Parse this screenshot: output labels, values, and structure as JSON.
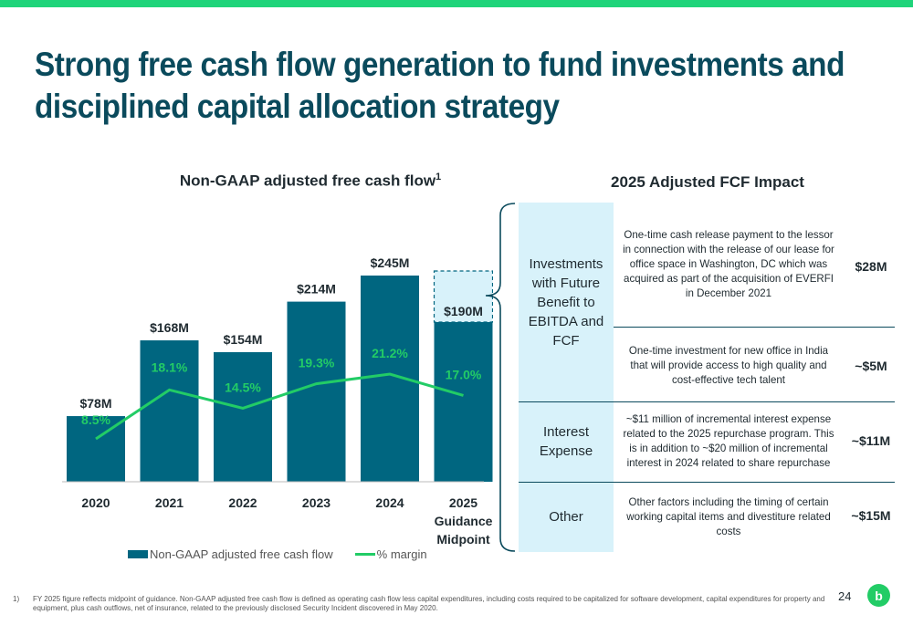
{
  "slide": {
    "title_line1": "Strong free cash flow generation to fund investments and",
    "title_line2": "disciplined capital allocation strategy",
    "page_number": "24",
    "logo_letter": "b"
  },
  "colors": {
    "accent_green": "#1fd47a",
    "title_teal": "#0a4a5c",
    "bar_teal": "#006680",
    "margin_line": "#22cc66",
    "panel_light_blue": "#d8f2fa"
  },
  "chart_data": {
    "type": "bar",
    "title": "Non-GAAP adjusted free cash flow",
    "title_superscript": "1",
    "categories": [
      "2020",
      "2021",
      "2022",
      "2023",
      "2024",
      "2025 Guidance Midpoint"
    ],
    "category_lines": [
      [
        "2020"
      ],
      [
        "2021"
      ],
      [
        "2022"
      ],
      [
        "2023"
      ],
      [
        "2024"
      ],
      [
        "2025",
        "Guidance",
        "Midpoint"
      ]
    ],
    "series": [
      {
        "name": "Non-GAAP adjusted free cash flow",
        "type": "bar",
        "values": [
          78,
          168,
          154,
          214,
          245,
          190
        ],
        "labels": [
          "$78M",
          "$168M",
          "$154M",
          "$214M",
          "$245M",
          "$190M"
        ],
        "guidance_index": 5
      },
      {
        "name": "% margin",
        "type": "line",
        "values": [
          8.5,
          18.1,
          14.5,
          19.3,
          21.2,
          17.0
        ],
        "labels": [
          "8.5%",
          "18.1%",
          "14.5%",
          "19.3%",
          "21.2%",
          "17.0%"
        ]
      }
    ],
    "legend_position": "bottom",
    "grid": false
  },
  "impact": {
    "title": "2025 Adjusted FCF Impact",
    "categories": [
      {
        "lines": [
          "Investments",
          "with Future",
          "Benefit to",
          "EBITDA and",
          "FCF"
        ]
      },
      {
        "lines": [
          "Interest",
          "Expense"
        ]
      },
      {
        "lines": [
          "Other"
        ]
      }
    ],
    "rows": [
      {
        "description": "One-time cash release payment to the lessor in connection with the release of our lease for office space in Washington, DC which was acquired as part of the acquisition of EVERFI in December 2021",
        "amount": "$28M"
      },
      {
        "description": "One-time investment for new office in India that will provide access to high quality and cost-effective tech talent",
        "amount": "~$5M"
      },
      {
        "description": "~$11 million of incremental interest expense related to the 2025 repurchase program.  This is in addition to ~$20 million of incremental interest in 2024 related to share repurchase",
        "amount": "~$11M"
      },
      {
        "description": "Other factors including the timing of certain working capital items and divestiture related costs",
        "amount": "~$15M"
      }
    ]
  },
  "footnote": {
    "number": "1)",
    "text": "FY 2025  figure reflects midpoint of guidance. Non-GAAP adjusted free cash flow is defined as operating cash flow less capital expenditures, including costs required to be capitalized for software development, capital expenditures for property and equipment, plus cash outflows, net of insurance, related to the previously disclosed Security Incident discovered in May 2020."
  }
}
